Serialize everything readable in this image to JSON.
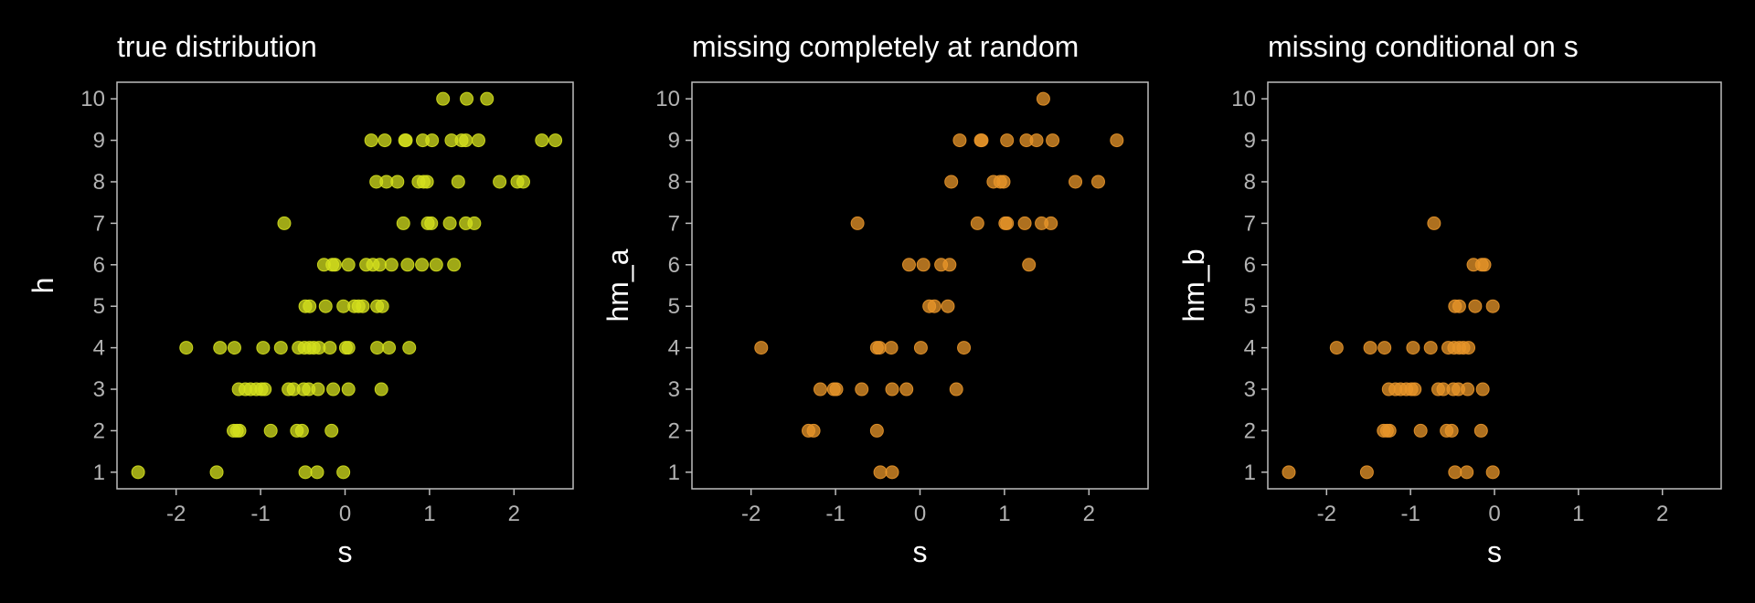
{
  "chart_data": [
    {
      "type": "scatter",
      "title": "true distribution",
      "xlabel": "s",
      "ylabel": "h",
      "xlim": [
        -2.7,
        2.7
      ],
      "ylim": [
        0.6,
        10.4
      ],
      "xticks": [
        "-2",
        "-1",
        "0",
        "1",
        "2"
      ],
      "yticks": [
        "1",
        "2",
        "3",
        "4",
        "5",
        "6",
        "7",
        "8",
        "9",
        "10"
      ],
      "grid": false,
      "color": "#d4e01e",
      "points": [
        [
          -2.45,
          1
        ],
        [
          -1.52,
          1
        ],
        [
          -0.47,
          1
        ],
        [
          -0.33,
          1
        ],
        [
          -0.02,
          1
        ],
        [
          -1.32,
          2
        ],
        [
          -1.28,
          2
        ],
        [
          -1.25,
          2
        ],
        [
          -0.88,
          2
        ],
        [
          -0.57,
          2
        ],
        [
          -0.51,
          2
        ],
        [
          -0.16,
          2
        ],
        [
          -1.26,
          3
        ],
        [
          -1.18,
          3
        ],
        [
          -1.12,
          3
        ],
        [
          -1.05,
          3
        ],
        [
          -0.99,
          3
        ],
        [
          -0.95,
          3
        ],
        [
          -0.67,
          3
        ],
        [
          -0.61,
          3
        ],
        [
          -0.49,
          3
        ],
        [
          -0.43,
          3
        ],
        [
          -0.32,
          3
        ],
        [
          -0.14,
          3
        ],
        [
          0.04,
          3
        ],
        [
          0.43,
          3
        ],
        [
          -1.88,
          4
        ],
        [
          -1.48,
          4
        ],
        [
          -1.31,
          4
        ],
        [
          -0.97,
          4
        ],
        [
          -0.76,
          4
        ],
        [
          -0.55,
          4
        ],
        [
          -0.48,
          4
        ],
        [
          -0.42,
          4
        ],
        [
          -0.37,
          4
        ],
        [
          -0.31,
          4
        ],
        [
          -0.18,
          4
        ],
        [
          0.01,
          4
        ],
        [
          0.04,
          4
        ],
        [
          0.38,
          4
        ],
        [
          0.52,
          4
        ],
        [
          0.76,
          4
        ],
        [
          -0.47,
          5
        ],
        [
          -0.42,
          5
        ],
        [
          -0.23,
          5
        ],
        [
          -0.02,
          5
        ],
        [
          0.11,
          5
        ],
        [
          0.16,
          5
        ],
        [
          0.21,
          5
        ],
        [
          0.38,
          5
        ],
        [
          0.44,
          5
        ],
        [
          -0.25,
          6
        ],
        [
          -0.15,
          6
        ],
        [
          -0.12,
          6
        ],
        [
          0.04,
          6
        ],
        [
          0.25,
          6
        ],
        [
          0.33,
          6
        ],
        [
          0.41,
          6
        ],
        [
          0.55,
          6
        ],
        [
          0.74,
          6
        ],
        [
          0.91,
          6
        ],
        [
          1.08,
          6
        ],
        [
          1.29,
          6
        ],
        [
          -0.72,
          7
        ],
        [
          0.69,
          7
        ],
        [
          0.98,
          7
        ],
        [
          1.02,
          7
        ],
        [
          1.24,
          7
        ],
        [
          1.43,
          7
        ],
        [
          1.53,
          7
        ],
        [
          0.37,
          8
        ],
        [
          0.49,
          8
        ],
        [
          0.62,
          8
        ],
        [
          0.87,
          8
        ],
        [
          0.93,
          8
        ],
        [
          0.97,
          8
        ],
        [
          1.34,
          8
        ],
        [
          1.83,
          8
        ],
        [
          2.04,
          8
        ],
        [
          2.11,
          8
        ],
        [
          0.31,
          9
        ],
        [
          0.47,
          9
        ],
        [
          0.71,
          9
        ],
        [
          0.72,
          9
        ],
        [
          0.92,
          9
        ],
        [
          1.03,
          9
        ],
        [
          1.26,
          9
        ],
        [
          1.38,
          9
        ],
        [
          1.43,
          9
        ],
        [
          1.58,
          9
        ],
        [
          2.33,
          9
        ],
        [
          2.49,
          9
        ],
        [
          1.16,
          10
        ],
        [
          1.44,
          10
        ],
        [
          1.68,
          10
        ]
      ]
    },
    {
      "type": "scatter",
      "title": "missing completely at random",
      "xlabel": "s",
      "ylabel": "hm_a",
      "xlim": [
        -2.7,
        2.7
      ],
      "ylim": [
        0.6,
        10.4
      ],
      "xticks": [
        "-2",
        "-1",
        "0",
        "1",
        "2"
      ],
      "yticks": [
        "1",
        "2",
        "3",
        "4",
        "5",
        "6",
        "7",
        "8",
        "9",
        "10"
      ],
      "grid": false,
      "color": "#e8952a",
      "points": [
        [
          -0.47,
          1
        ],
        [
          -0.33,
          1
        ],
        [
          -1.32,
          2
        ],
        [
          -1.26,
          2
        ],
        [
          -0.51,
          2
        ],
        [
          -1.18,
          3
        ],
        [
          -1.02,
          3
        ],
        [
          -0.99,
          3
        ],
        [
          -0.69,
          3
        ],
        [
          -0.33,
          3
        ],
        [
          -0.16,
          3
        ],
        [
          0.43,
          3
        ],
        [
          -1.88,
          4
        ],
        [
          -0.51,
          4
        ],
        [
          -0.48,
          4
        ],
        [
          -0.34,
          4
        ],
        [
          0.01,
          4
        ],
        [
          0.52,
          4
        ],
        [
          0.11,
          5
        ],
        [
          0.17,
          5
        ],
        [
          0.33,
          5
        ],
        [
          -0.13,
          6
        ],
        [
          0.04,
          6
        ],
        [
          0.25,
          6
        ],
        [
          0.35,
          6
        ],
        [
          1.29,
          6
        ],
        [
          -0.74,
          7
        ],
        [
          0.68,
          7
        ],
        [
          1.01,
          7
        ],
        [
          1.03,
          7
        ],
        [
          1.24,
          7
        ],
        [
          1.44,
          7
        ],
        [
          1.55,
          7
        ],
        [
          0.37,
          8
        ],
        [
          0.87,
          8
        ],
        [
          0.95,
          8
        ],
        [
          0.99,
          8
        ],
        [
          1.84,
          8
        ],
        [
          2.11,
          8
        ],
        [
          0.47,
          9
        ],
        [
          0.72,
          9
        ],
        [
          0.73,
          9
        ],
        [
          1.03,
          9
        ],
        [
          1.26,
          9
        ],
        [
          1.38,
          9
        ],
        [
          1.57,
          9
        ],
        [
          2.33,
          9
        ],
        [
          1.46,
          10
        ]
      ]
    },
    {
      "type": "scatter",
      "title": "missing conditional on s",
      "xlabel": "s",
      "ylabel": "hm_b",
      "xlim": [
        -2.7,
        2.7
      ],
      "ylim": [
        0.6,
        10.4
      ],
      "xticks": [
        "-2",
        "-1",
        "0",
        "1",
        "2"
      ],
      "yticks": [
        "1",
        "2",
        "3",
        "4",
        "5",
        "6",
        "7",
        "8",
        "9",
        "10"
      ],
      "grid": false,
      "color": "#e8952a",
      "points": [
        [
          -2.45,
          1
        ],
        [
          -1.52,
          1
        ],
        [
          -0.47,
          1
        ],
        [
          -0.33,
          1
        ],
        [
          -0.02,
          1
        ],
        [
          -1.32,
          2
        ],
        [
          -1.28,
          2
        ],
        [
          -1.25,
          2
        ],
        [
          -0.88,
          2
        ],
        [
          -0.57,
          2
        ],
        [
          -0.51,
          2
        ],
        [
          -0.16,
          2
        ],
        [
          -1.26,
          3
        ],
        [
          -1.18,
          3
        ],
        [
          -1.12,
          3
        ],
        [
          -1.05,
          3
        ],
        [
          -0.99,
          3
        ],
        [
          -0.95,
          3
        ],
        [
          -0.67,
          3
        ],
        [
          -0.61,
          3
        ],
        [
          -0.49,
          3
        ],
        [
          -0.43,
          3
        ],
        [
          -0.32,
          3
        ],
        [
          -0.14,
          3
        ],
        [
          -1.88,
          4
        ],
        [
          -1.48,
          4
        ],
        [
          -1.31,
          4
        ],
        [
          -0.97,
          4
        ],
        [
          -0.76,
          4
        ],
        [
          -0.55,
          4
        ],
        [
          -0.48,
          4
        ],
        [
          -0.42,
          4
        ],
        [
          -0.37,
          4
        ],
        [
          -0.31,
          4
        ],
        [
          -0.47,
          5
        ],
        [
          -0.42,
          5
        ],
        [
          -0.23,
          5
        ],
        [
          -0.02,
          5
        ],
        [
          -0.25,
          6
        ],
        [
          -0.15,
          6
        ],
        [
          -0.12,
          6
        ],
        [
          -0.72,
          7
        ]
      ]
    }
  ]
}
